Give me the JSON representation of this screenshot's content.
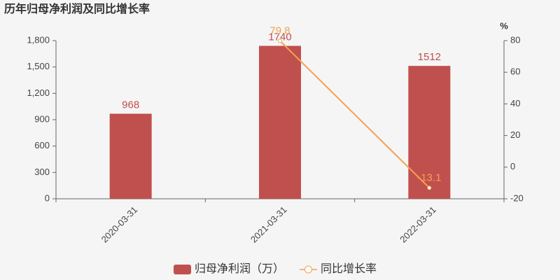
{
  "chart_data": {
    "type": "bar",
    "title": "历年归母净利润及同比增长率",
    "categories": [
      "2020-03-31",
      "2021-03-31",
      "2022-03-31"
    ],
    "series": [
      {
        "name": "归母净利润（万）",
        "type": "bar",
        "color": "#c0504d",
        "values": [
          968,
          1740,
          1512
        ]
      },
      {
        "name": "同比增长率",
        "type": "line",
        "axis": "y2",
        "color": "#f5a050",
        "values": [
          null,
          79.8,
          -13.1
        ]
      }
    ],
    "ylim": [
      0,
      1800
    ],
    "yticks": [
      0,
      300,
      600,
      900,
      {
        "value": 1200,
        "label": "1,200"
      },
      {
        "value": 1500,
        "label": "1,500"
      },
      {
        "value": 1800,
        "label": "1,800"
      }
    ],
    "y2label": "%",
    "y2lim": [
      -20,
      80
    ],
    "y2ticks": [
      -20,
      0,
      20,
      40,
      60,
      80
    ]
  }
}
